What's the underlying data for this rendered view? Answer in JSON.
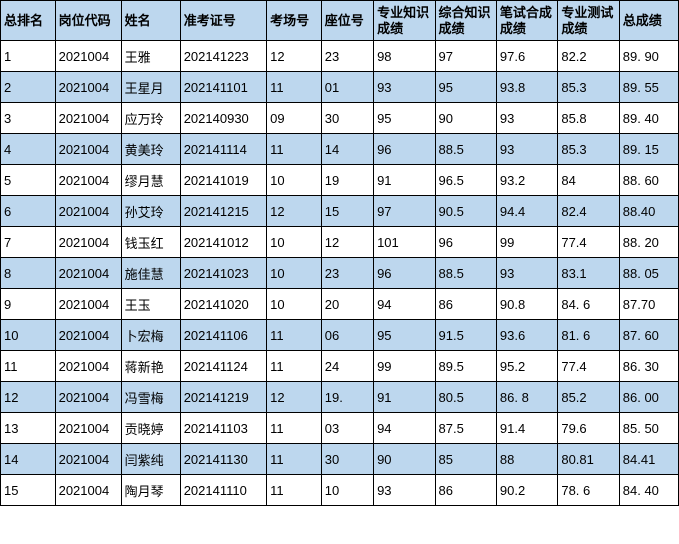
{
  "table": {
    "header_bg": "#bdd7ee",
    "alt_row_bg": "#bdd7ee",
    "norm_row_bg": "#ffffff",
    "border_color": "#000000",
    "font_size": 13,
    "columns": [
      "总排名",
      "岗位代码",
      "姓名",
      "准考证号",
      "考场号",
      "座位号",
      "专业知识成绩",
      "综合知识成绩",
      "笔试合成成绩",
      "专业测试成绩",
      "总成绩"
    ],
    "rows": [
      [
        "1",
        "2021004",
        "王雅",
        "202141223",
        "12",
        "23",
        "98",
        "97",
        "97.6",
        "82.2",
        "89. 90"
      ],
      [
        "2",
        "2021004",
        "王星月",
        "202141101",
        "11",
        "01",
        "93",
        "95",
        "93.8",
        "85.3",
        "89. 55"
      ],
      [
        "3",
        "2021004",
        "应万玲",
        "202140930",
        "09",
        "30",
        "95",
        "90",
        "93",
        "85.8",
        "89. 40"
      ],
      [
        "4",
        "2021004",
        "黄美玲",
        "202141114",
        "11",
        "14",
        "96",
        "88.5",
        "93",
        "85.3",
        "89. 15"
      ],
      [
        "5",
        "2021004",
        "缪月慧",
        "202141019",
        "10",
        "19",
        "91",
        "96.5",
        "93.2",
        "84",
        "88. 60"
      ],
      [
        "6",
        "2021004",
        "孙艾玲",
        "202141215",
        "12",
        "15",
        "97",
        "90.5",
        "94.4",
        "82.4",
        "88.40"
      ],
      [
        "7",
        "2021004",
        "钱玉红",
        "202141012",
        "10",
        "12",
        "101",
        "96",
        "99",
        "77.4",
        "88. 20"
      ],
      [
        "8",
        "2021004",
        "施佳慧",
        "202141023",
        "10",
        "23",
        "96",
        "88.5",
        "93",
        "83.1",
        "88. 05"
      ],
      [
        "9",
        "2021004",
        "王玉",
        "202141020",
        "10",
        "20",
        "94",
        "86",
        "90.8",
        "84. 6",
        "87.70"
      ],
      [
        "10",
        "2021004",
        "卜宏梅",
        "202141106",
        "11",
        "06",
        "95",
        "91.5",
        "93.6",
        "81. 6",
        "87. 60"
      ],
      [
        "11",
        "2021004",
        "蒋新艳",
        "202141124",
        "11",
        "24",
        "99",
        "89.5",
        "95.2",
        "77.4",
        "86. 30"
      ],
      [
        "12",
        "2021004",
        "冯雪梅",
        "202141219",
        "12",
        "19.",
        "91",
        "80.5",
        "86. 8",
        "85.2",
        "86. 00"
      ],
      [
        "13",
        "2021004",
        "贡晓婷",
        "202141103",
        "11",
        "03",
        "94",
        "87.5",
        "91.4",
        "79.6",
        "85. 50"
      ],
      [
        "14",
        "2021004",
        "闫紫纯",
        "202141130",
        "11",
        "30",
        "90",
        "85",
        "88",
        "80.81",
        "84.41"
      ],
      [
        "15",
        "2021004",
        "陶月琴",
        "202141110",
        "11",
        "10",
        "93",
        "86",
        "90.2",
        "78. 6",
        "84. 40"
      ]
    ]
  }
}
